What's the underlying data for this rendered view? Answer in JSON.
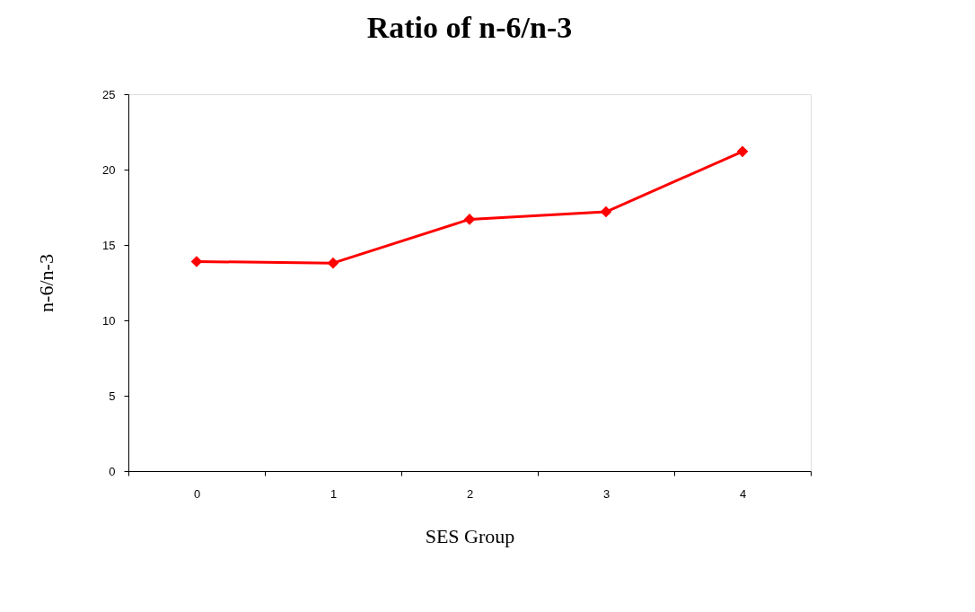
{
  "chart_data": {
    "type": "line",
    "title": "Ratio of n-6/n-3",
    "xlabel": "SES Group",
    "ylabel": "n-6/n-3",
    "categories": [
      "0",
      "1",
      "2",
      "3",
      "4"
    ],
    "series": [
      {
        "color": "#ff0000",
        "values": [
          13.9,
          13.8,
          16.7,
          17.2,
          21.2
        ]
      }
    ],
    "ylim": [
      0,
      25
    ],
    "yticks": [
      0,
      5,
      10,
      15,
      20,
      25
    ],
    "grid": false,
    "legend": false,
    "marker": "diamond",
    "line_style": "solid"
  }
}
